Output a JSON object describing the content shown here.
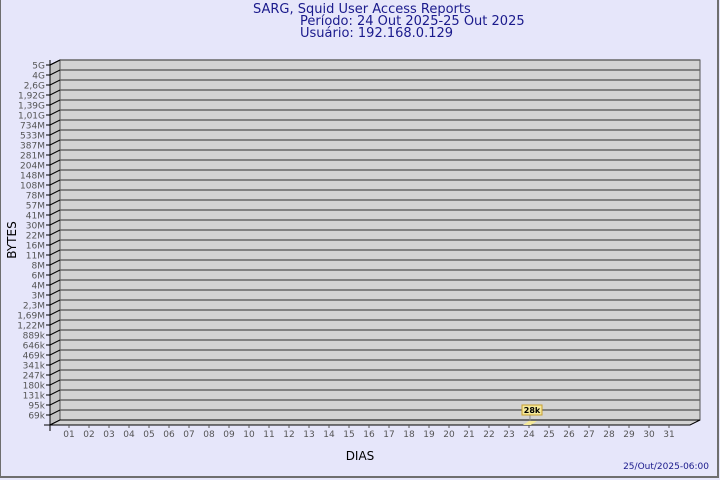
{
  "title": "SARG, Squid User Access Reports",
  "period": "Período: 24 Out 2025-25 Out 2025",
  "user": "Usuário: 192.168.0.129",
  "generated": "25/Out/2025-06:00",
  "colors": {
    "background": "#e6e6fa",
    "wall": "#d3d3d3",
    "side": "#c4c4c4",
    "bar": "#f5e99a",
    "text": "#1a1a8c"
  },
  "chart_data": {
    "type": "bar",
    "title": "SARG, Squid User Access Reports",
    "xlabel": "DIAS",
    "ylabel": "BYTES",
    "y_scale": "log",
    "y_tick_labels": [
      "5G",
      "4G",
      "2,6G",
      "1,92G",
      "1,39G",
      "1,01G",
      "734M",
      "533M",
      "387M",
      "281M",
      "204M",
      "148M",
      "108M",
      "78M",
      "57M",
      "41M",
      "30M",
      "22M",
      "16M",
      "11M",
      "8M",
      "6M",
      "4M",
      "3M",
      "2,3M",
      "1,69M",
      "1,22M",
      "889k",
      "646k",
      "469k",
      "341k",
      "247k",
      "180k",
      "131k",
      "95k",
      "69k"
    ],
    "categories": [
      "01",
      "02",
      "03",
      "04",
      "05",
      "06",
      "07",
      "08",
      "09",
      "10",
      "11",
      "12",
      "13",
      "14",
      "15",
      "16",
      "17",
      "18",
      "19",
      "20",
      "21",
      "22",
      "23",
      "24",
      "25",
      "26",
      "27",
      "28",
      "29",
      "30",
      "31"
    ],
    "bars": [
      {
        "day": "24",
        "value_label": "28k",
        "value": 28000
      }
    ],
    "grid": true,
    "style": "3d"
  }
}
